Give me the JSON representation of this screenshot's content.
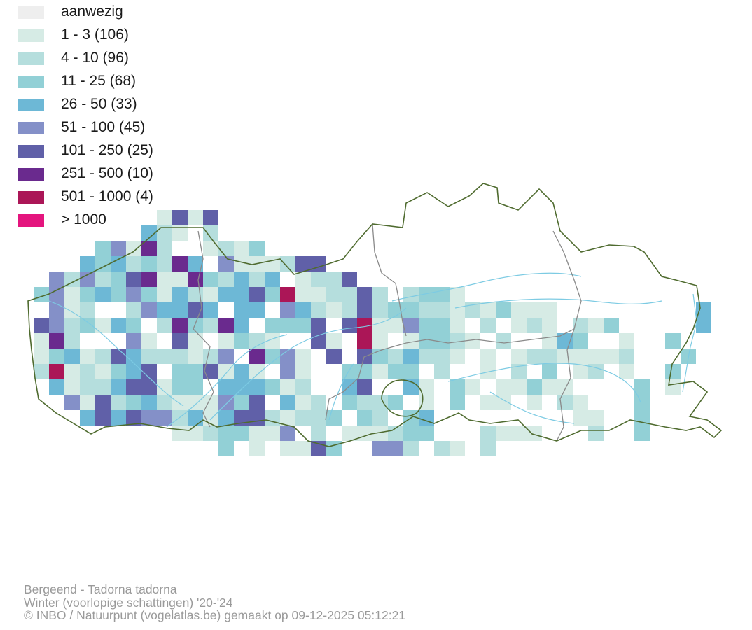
{
  "legend": {
    "items": [
      {
        "label": "aanwezig",
        "color": "#eeeeee"
      },
      {
        "label": "1 - 3 (106)",
        "color": "#d6ebe5"
      },
      {
        "label": "4 - 10 (96)",
        "color": "#b5dedd"
      },
      {
        "label": "11 - 25 (68)",
        "color": "#92d0d6"
      },
      {
        "label": "26 - 50 (33)",
        "color": "#6db8d6"
      },
      {
        "label": "51 - 100 (45)",
        "color": "#8490c8"
      },
      {
        "label": "101 - 250 (25)",
        "color": "#6060a8"
      },
      {
        "label": "251 - 500 (10)",
        "color": "#6a2a8e"
      },
      {
        "label": "501 - 1000 (4)",
        "color": "#ab1657"
      },
      {
        "label": "> 1000",
        "color": "#e4157e"
      }
    ]
  },
  "map": {
    "border_color": "#4f6b2f",
    "province_border_color": "#8a8a8a",
    "river_color": "#7dcbe3"
  },
  "caption": {
    "species": "Bergeend - Tadorna tadorna",
    "season": "Winter (voorlopige schattingen) '20-'24",
    "credit": "© INBO / Natuurpunt (vogelatlas.be) gemaakt op 09-12-2025 05:12:21"
  }
}
